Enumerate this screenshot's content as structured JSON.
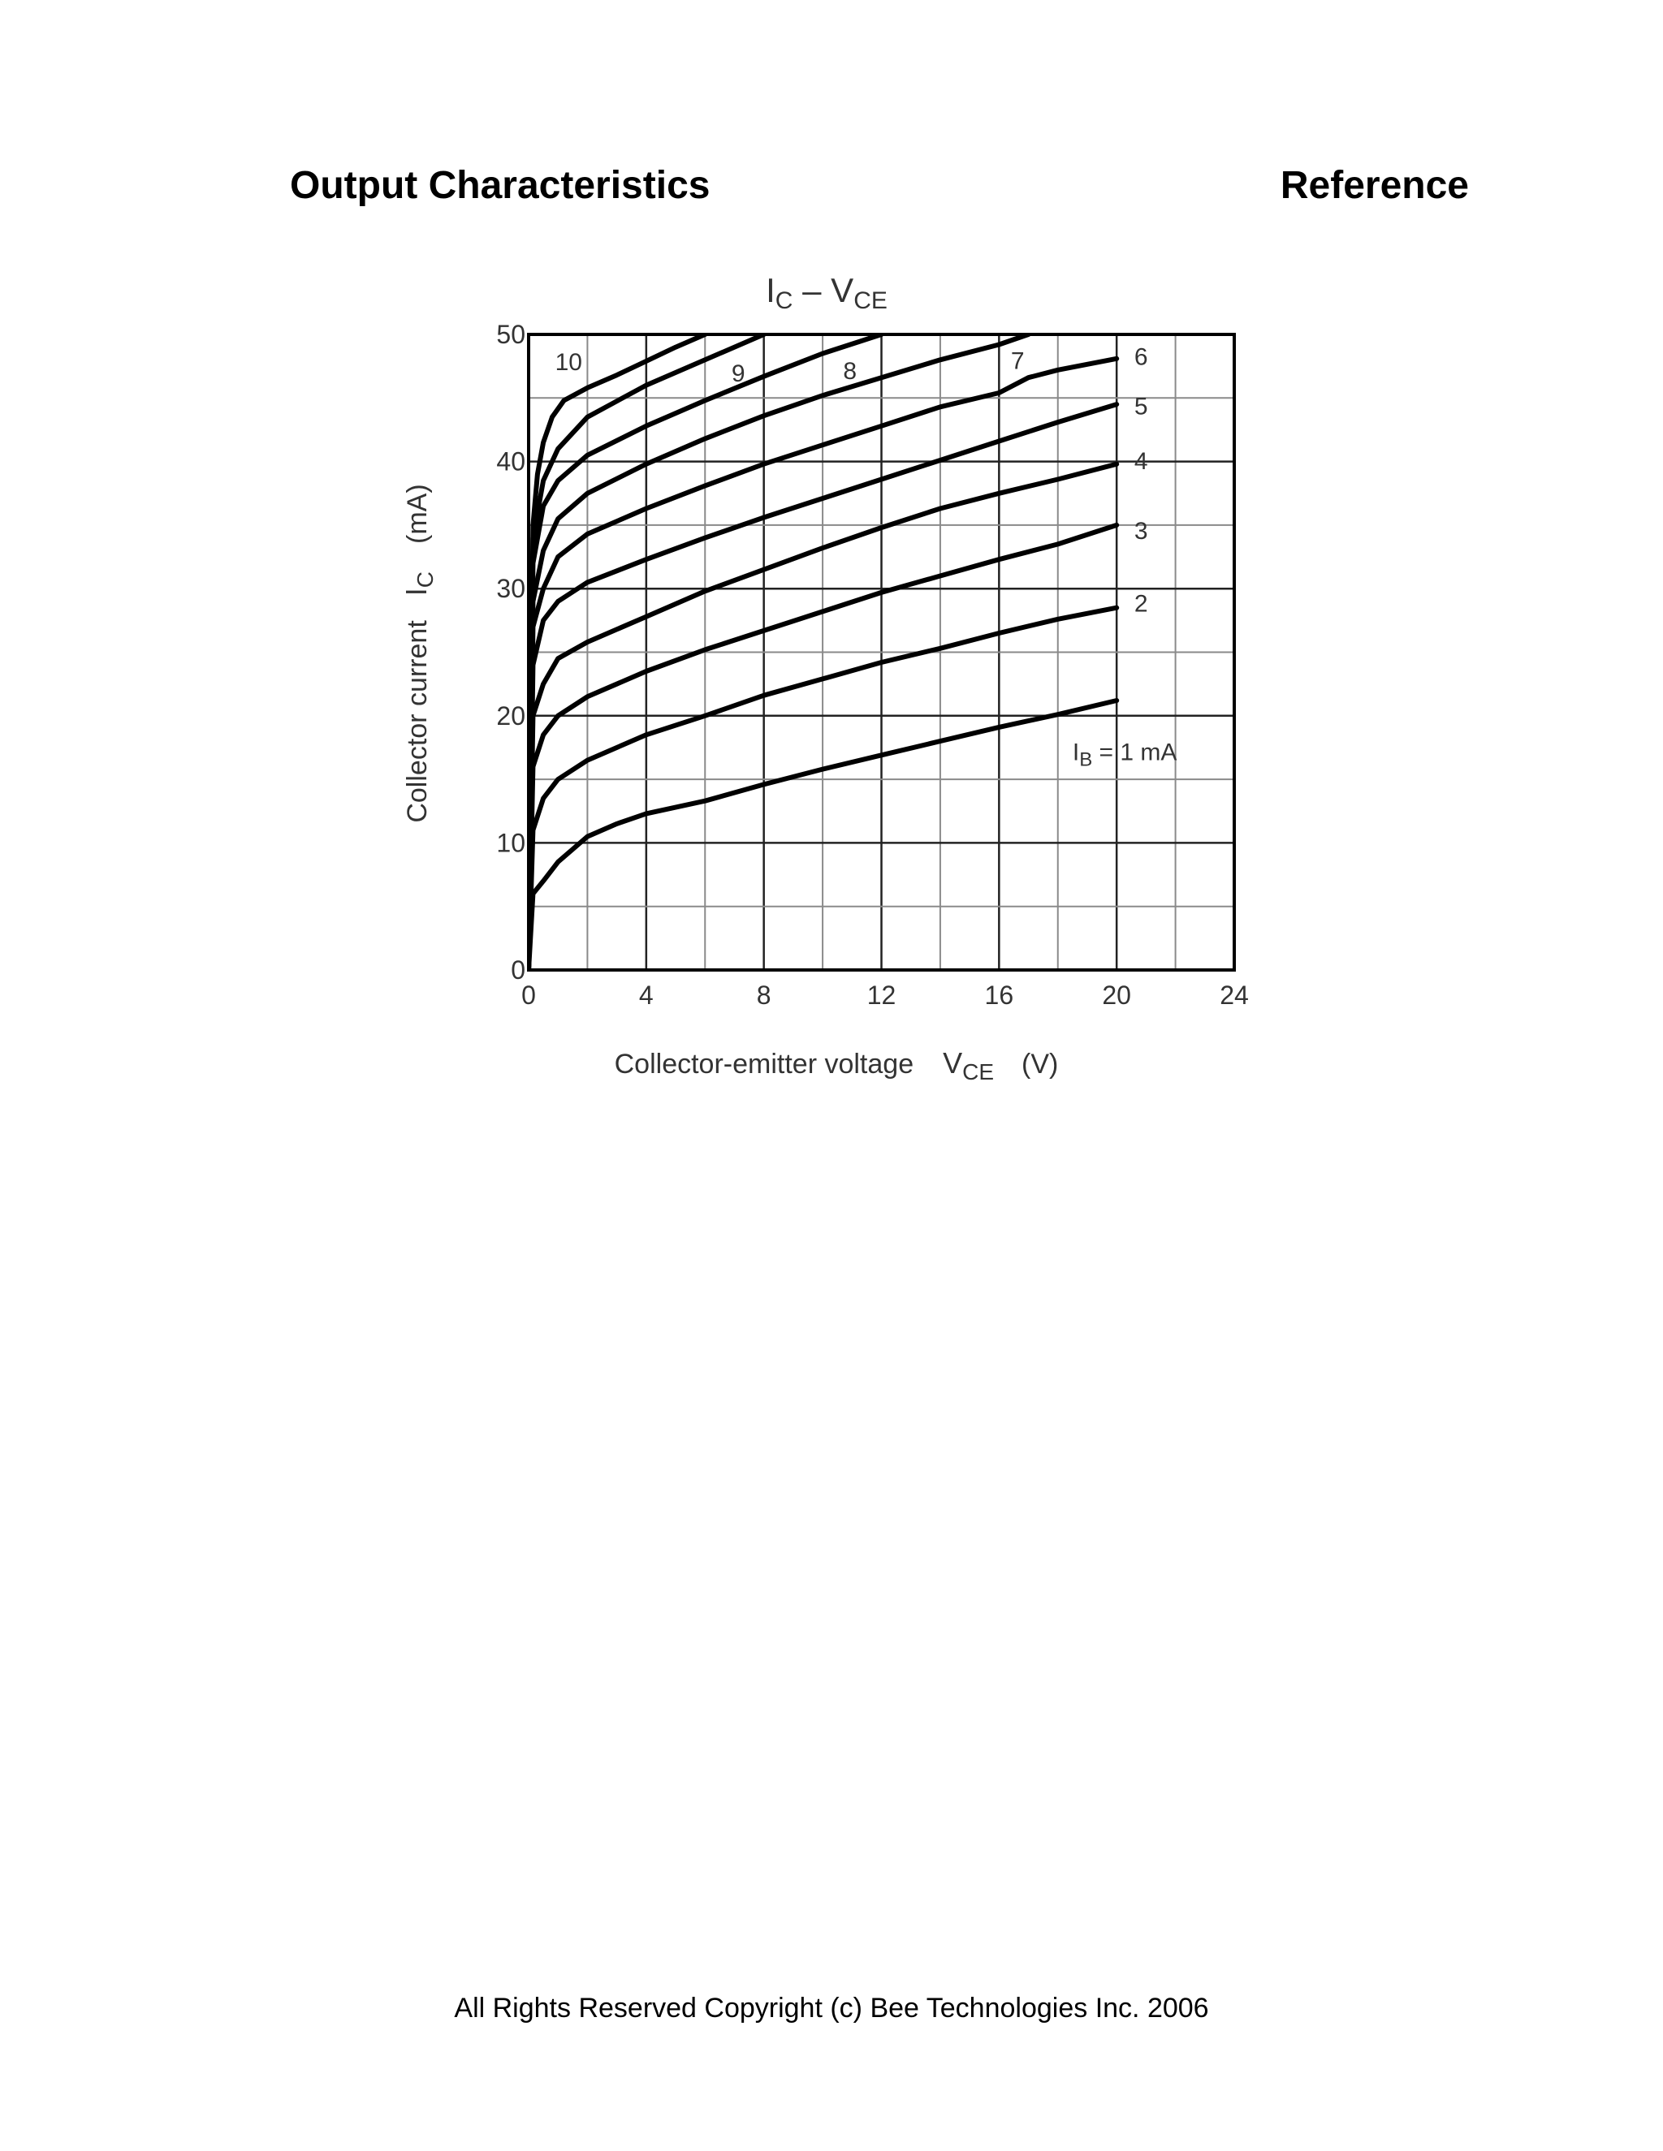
{
  "page": {
    "title": "Output Characteristics",
    "reference": "Reference",
    "footer": "All Rights Reserved Copyright (c) Bee Technologies Inc. 2006"
  },
  "chart_data": {
    "type": "line",
    "title": {
      "main": "I",
      "sub": "C",
      "sep": " – ",
      "main2": "V",
      "sub2": "CE"
    },
    "xlabel": {
      "text": "Collector-emitter voltage",
      "sym": "V",
      "sub": "CE",
      "unit": "(V)"
    },
    "ylabel": {
      "text": "Collector current",
      "sym": "I",
      "sub": "C",
      "unit": "(mA)"
    },
    "xlim": [
      0,
      24
    ],
    "ylim": [
      0,
      50
    ],
    "xticks": [
      0,
      4,
      8,
      12,
      16,
      20,
      24
    ],
    "yticks": [
      0,
      10,
      20,
      30,
      40,
      50
    ],
    "grid": true,
    "series": [
      {
        "name": "1",
        "label": {
          "main": "I",
          "sub": "B",
          "rest": " = 1 mA"
        },
        "x": [
          0,
          0.15,
          0.5,
          1,
          2,
          3,
          4,
          6,
          8,
          10,
          12,
          14,
          16,
          18,
          20
        ],
        "y": [
          0,
          6,
          7,
          8.5,
          10.5,
          11.5,
          12.3,
          13.3,
          14.6,
          15.8,
          16.9,
          18.0,
          19.1,
          20.1,
          21.2
        ]
      },
      {
        "name": "2",
        "x": [
          0,
          0.15,
          0.5,
          1,
          2,
          4,
          6,
          8,
          10,
          12,
          14,
          16,
          18,
          20
        ],
        "y": [
          0,
          11,
          13.5,
          15,
          16.5,
          18.5,
          20,
          21.6,
          22.9,
          24.2,
          25.3,
          26.5,
          27.6,
          28.5
        ]
      },
      {
        "name": "3",
        "x": [
          0,
          0.15,
          0.5,
          1,
          2,
          4,
          6,
          8,
          10,
          12,
          14,
          16,
          18,
          20
        ],
        "y": [
          0,
          16,
          18.5,
          20,
          21.5,
          23.5,
          25.2,
          26.7,
          28.2,
          29.7,
          31,
          32.3,
          33.5,
          35
        ]
      },
      {
        "name": "4",
        "x": [
          0,
          0.15,
          0.5,
          1,
          2,
          4,
          6,
          8,
          10,
          12,
          14,
          16,
          18,
          20
        ],
        "y": [
          0,
          20,
          22.5,
          24.5,
          25.8,
          27.8,
          29.8,
          31.5,
          33.2,
          34.8,
          36.3,
          37.5,
          38.6,
          39.8
        ]
      },
      {
        "name": "5",
        "x": [
          0,
          0.15,
          0.5,
          1,
          2,
          4,
          6,
          8,
          10,
          12,
          14,
          16,
          18,
          20
        ],
        "y": [
          0,
          24,
          27.5,
          29,
          30.5,
          32.3,
          34,
          35.6,
          37.1,
          38.6,
          40.1,
          41.6,
          43.1,
          44.5
        ]
      },
      {
        "name": "6",
        "x": [
          0,
          0.15,
          0.5,
          1,
          2,
          4,
          6,
          8,
          10,
          12,
          14,
          16,
          17,
          18,
          20
        ],
        "y": [
          0,
          27,
          30,
          32.5,
          34.3,
          36.3,
          38.1,
          39.8,
          41.3,
          42.8,
          44.3,
          45.4,
          46.6,
          47.2,
          48.1
        ]
      },
      {
        "name": "7",
        "x": [
          0,
          0.15,
          0.5,
          1,
          2,
          4,
          6,
          8,
          10,
          12,
          14,
          16,
          17
        ],
        "y": [
          0,
          29,
          33,
          35.5,
          37.5,
          39.8,
          41.8,
          43.6,
          45.2,
          46.6,
          48,
          49.2,
          50
        ]
      },
      {
        "name": "8",
        "x": [
          0,
          0.15,
          0.5,
          1,
          2,
          4,
          6,
          8,
          10,
          12
        ],
        "y": [
          0,
          32,
          36.5,
          38.5,
          40.5,
          42.8,
          44.8,
          46.7,
          48.5,
          50
        ]
      },
      {
        "name": "9",
        "x": [
          0,
          0.15,
          0.5,
          1,
          2,
          4,
          6,
          8
        ],
        "y": [
          0,
          34,
          38.5,
          41,
          43.5,
          46,
          48,
          50
        ]
      },
      {
        "name": "10",
        "x": [
          0,
          0.15,
          0.3,
          0.5,
          0.8,
          1.2,
          2,
          3,
          4,
          5,
          6
        ],
        "y": [
          0,
          35,
          39,
          41.5,
          43.5,
          44.8,
          45.8,
          46.8,
          47.9,
          49,
          50
        ]
      }
    ]
  }
}
